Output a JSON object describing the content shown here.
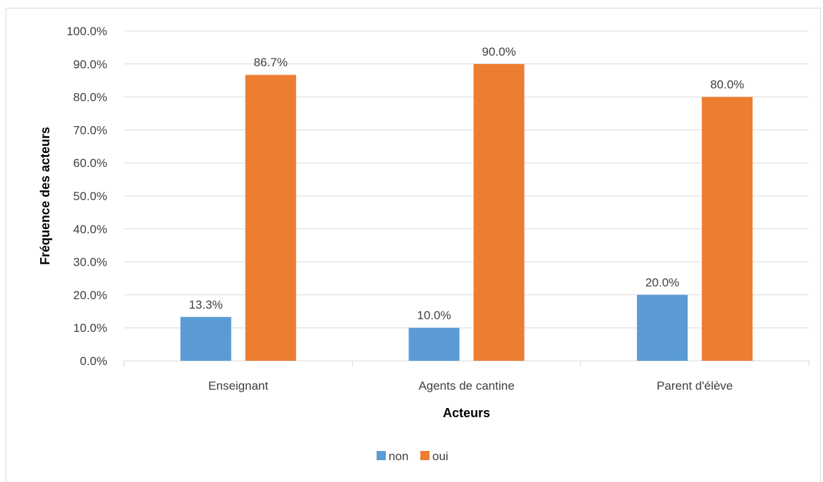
{
  "chart_data": {
    "type": "bar",
    "categories": [
      "Enseignant",
      "Agents de cantine",
      "Parent d'élève"
    ],
    "series": [
      {
        "name": "non",
        "values": [
          13.3,
          10.0,
          20.0
        ],
        "labels": [
          "13.3%",
          "10.0%",
          "20.0%"
        ],
        "color": "#5b9bd5"
      },
      {
        "name": "oui",
        "values": [
          86.7,
          90.0,
          80.0
        ],
        "labels": [
          "86.7%",
          "90.0%",
          "80.0%"
        ],
        "color": "#ed7d31"
      }
    ],
    "xlabel": "Acteurs",
    "ylabel": "Fréquence des acteurs",
    "ylim": [
      0,
      100
    ],
    "yticks": [
      0,
      10,
      20,
      30,
      40,
      50,
      60,
      70,
      80,
      90,
      100
    ],
    "ytick_labels": [
      "0.0%",
      "10.0%",
      "20.0%",
      "30.0%",
      "40.0%",
      "50.0%",
      "60.0%",
      "70.0%",
      "80.0%",
      "90.0%",
      "100.0%"
    ],
    "grid": true,
    "legend_position": "bottom",
    "gridline_color": "#d9d9d9"
  }
}
